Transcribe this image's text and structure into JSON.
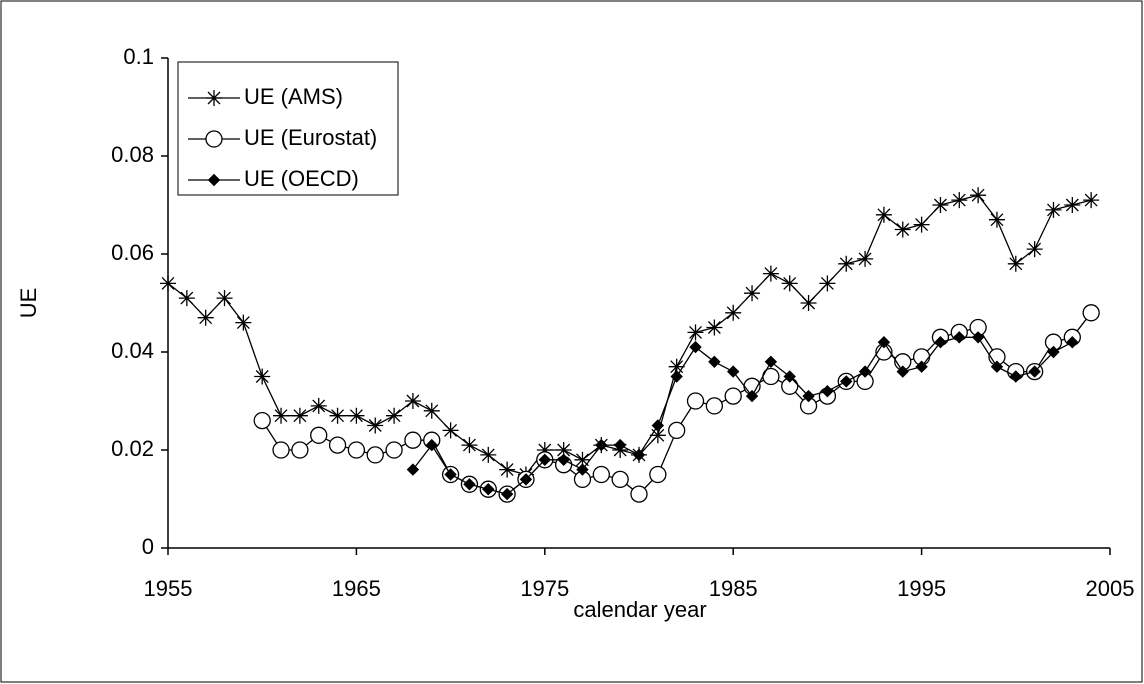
{
  "chart_data": {
    "type": "line",
    "x_label": "calendar year",
    "y_label": "UE",
    "x": [
      1955,
      1956,
      1957,
      1958,
      1959,
      1960,
      1961,
      1962,
      1963,
      1964,
      1965,
      1966,
      1967,
      1968,
      1969,
      1970,
      1971,
      1972,
      1973,
      1974,
      1975,
      1976,
      1977,
      1978,
      1979,
      1980,
      1981,
      1982,
      1983,
      1984,
      1985,
      1986,
      1987,
      1988,
      1989,
      1990,
      1991,
      1992,
      1993,
      1994,
      1995,
      1996,
      1997,
      1998,
      1999,
      2000,
      2001,
      2002,
      2003,
      2004
    ],
    "series": [
      {
        "name": "UE (AMS)",
        "color": "#000000",
        "marker": "star",
        "values": [
          0.054,
          0.051,
          0.047,
          0.051,
          0.046,
          0.035,
          0.027,
          0.027,
          0.029,
          0.027,
          0.027,
          0.025,
          0.027,
          0.03,
          0.028,
          0.024,
          0.021,
          0.019,
          0.016,
          0.015,
          0.02,
          0.02,
          0.018,
          0.021,
          0.02,
          0.019,
          0.023,
          0.037,
          0.044,
          0.045,
          0.048,
          0.052,
          0.056,
          0.054,
          0.05,
          0.054,
          0.058,
          0.059,
          0.068,
          0.065,
          0.066,
          0.07,
          0.071,
          0.072,
          0.067,
          0.058,
          0.061,
          0.069,
          0.07,
          0.071
        ]
      },
      {
        "name": "UE (Eurostat)",
        "color": "#000000",
        "marker": "circle",
        "values": [
          null,
          null,
          null,
          null,
          null,
          0.026,
          0.02,
          0.02,
          0.023,
          0.021,
          0.02,
          0.019,
          0.02,
          0.022,
          0.022,
          0.015,
          0.013,
          0.012,
          0.011,
          0.014,
          0.018,
          0.017,
          0.014,
          0.015,
          0.014,
          0.011,
          0.015,
          0.024,
          0.03,
          0.029,
          0.031,
          0.033,
          0.035,
          0.033,
          0.029,
          0.031,
          0.034,
          0.034,
          0.04,
          0.038,
          0.039,
          0.043,
          0.044,
          0.045,
          0.039,
          0.036,
          0.036,
          0.042,
          0.043,
          0.048
        ]
      },
      {
        "name": "UE (OECD)",
        "color": "#000000",
        "marker": "diamond",
        "values": [
          null,
          null,
          null,
          null,
          null,
          null,
          null,
          null,
          null,
          null,
          null,
          null,
          null,
          0.016,
          0.021,
          0.015,
          0.013,
          0.012,
          0.011,
          0.014,
          0.018,
          0.018,
          0.016,
          0.021,
          0.021,
          0.019,
          0.025,
          0.035,
          0.041,
          0.038,
          0.036,
          0.031,
          0.038,
          0.035,
          0.031,
          0.032,
          0.034,
          0.036,
          0.042,
          0.036,
          0.037,
          0.042,
          0.043,
          0.043,
          0.037,
          0.035,
          0.036,
          0.04,
          0.042,
          null
        ]
      }
    ],
    "xlim": [
      1955,
      2005
    ],
    "xticks": [
      1955,
      1965,
      1975,
      1985,
      1995,
      2005
    ],
    "ylim": [
      0,
      0.1
    ],
    "yticks": [
      0,
      0.02,
      0.04,
      0.06,
      0.08,
      0.1
    ],
    "legend": "top-left"
  }
}
